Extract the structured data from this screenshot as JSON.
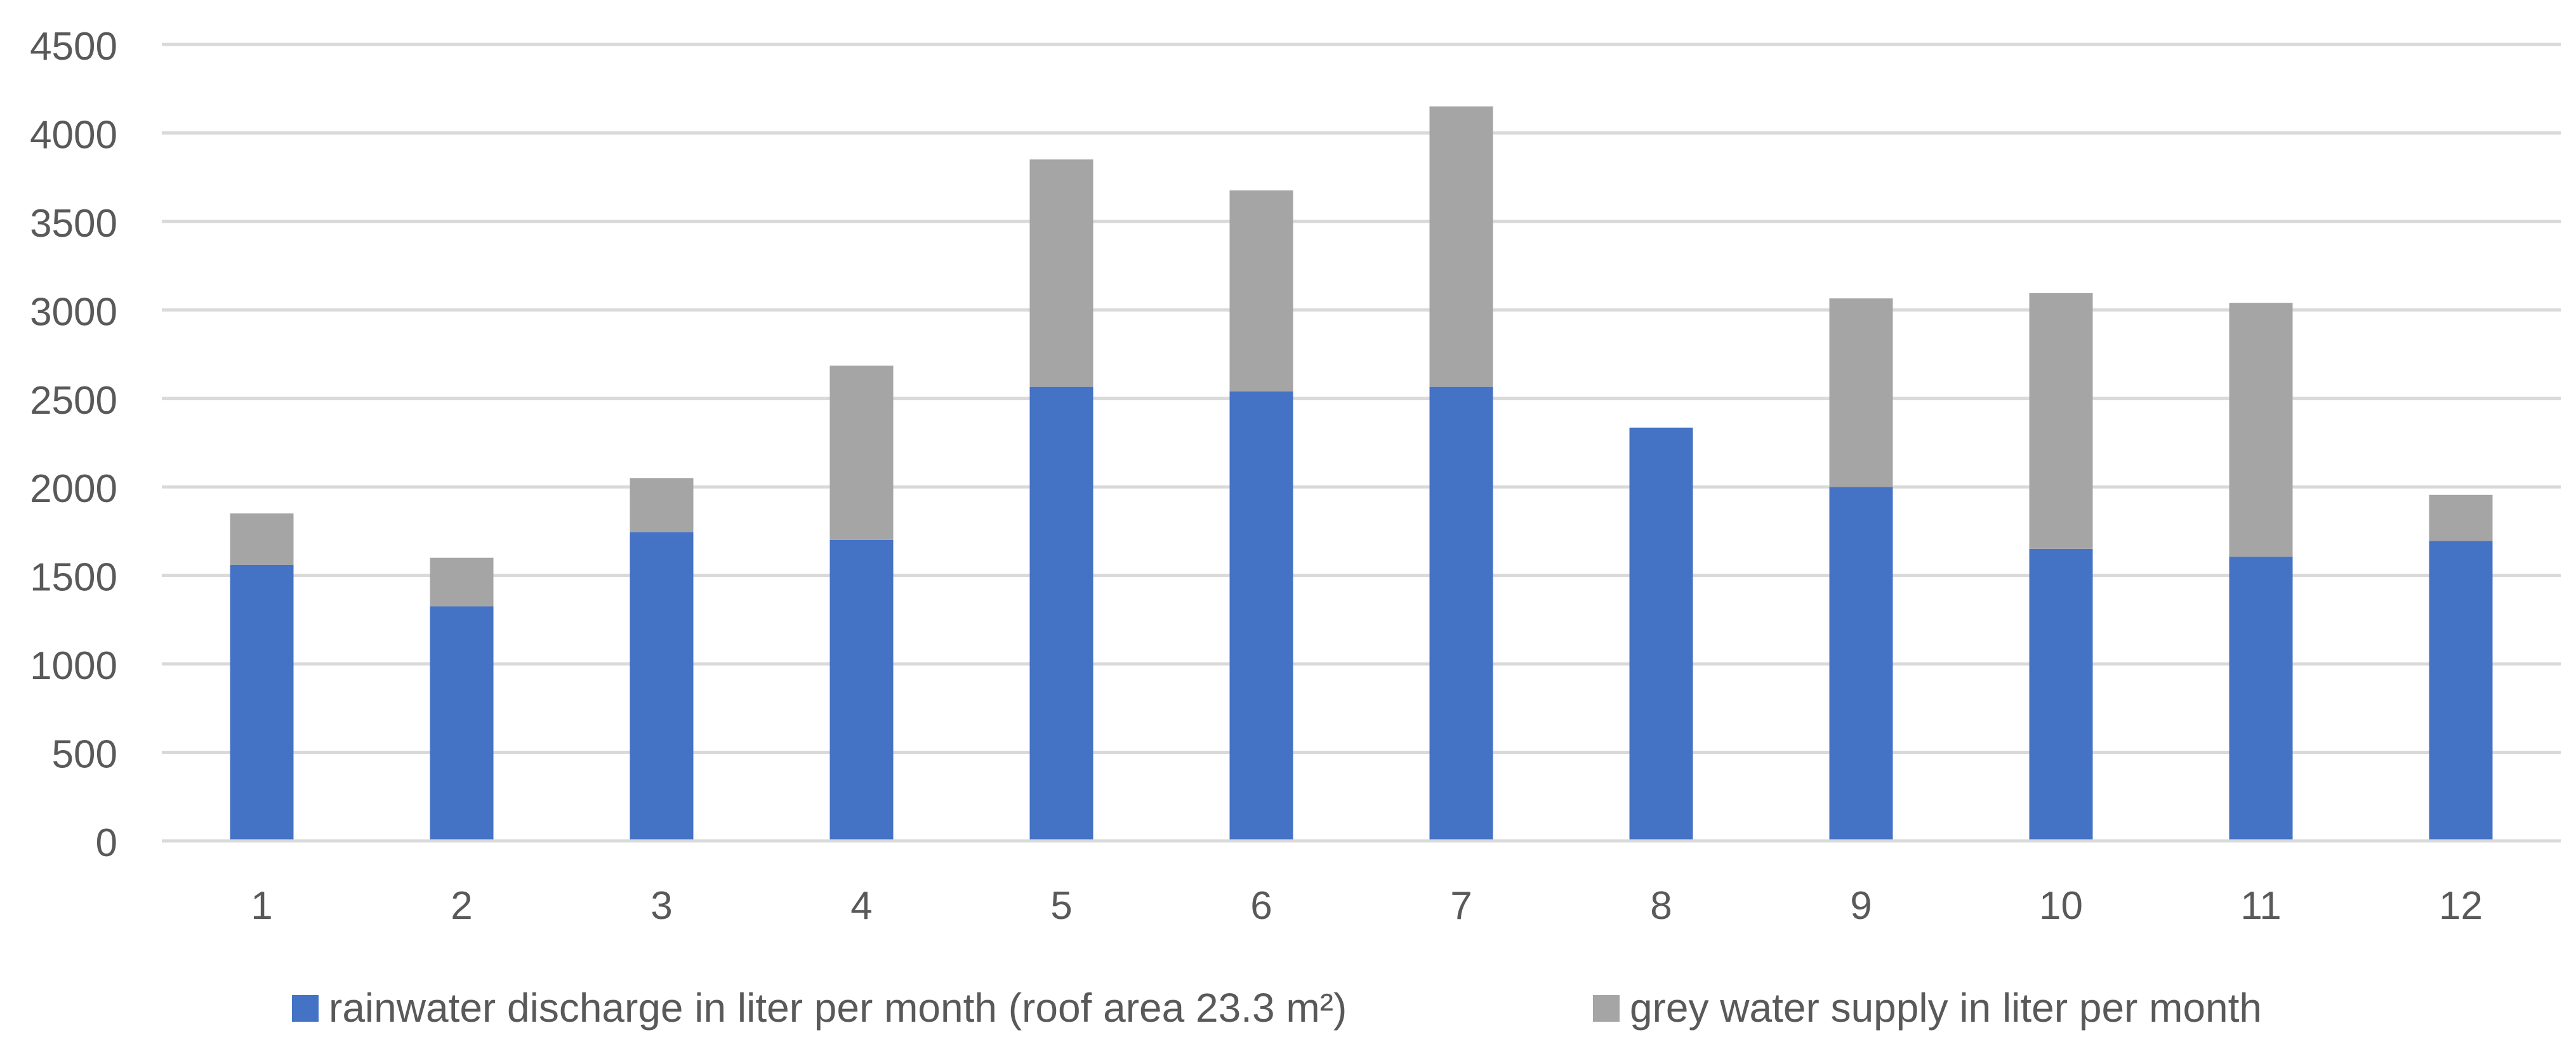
{
  "chart_data": {
    "type": "bar",
    "stacked": true,
    "title": "",
    "xlabel": "",
    "ylabel": "",
    "categories": [
      "1",
      "2",
      "3",
      "4",
      "5",
      "6",
      "7",
      "8",
      "9",
      "10",
      "11",
      "12"
    ],
    "series": [
      {
        "name": "rainwater discharge in liter per month (roof area 23.3 m²)",
        "color": "#4472C4",
        "values": [
          1560,
          1325,
          1745,
          1700,
          2565,
          2540,
          2565,
          2335,
          2000,
          1650,
          1605,
          1695
        ]
      },
      {
        "name": "grey water supply in liter per month",
        "color": "#A5A5A5",
        "values": [
          290,
          275,
          305,
          985,
          1285,
          1135,
          1585,
          0,
          1065,
          1445,
          1435,
          260
        ]
      }
    ],
    "ylim": [
      0,
      4500
    ],
    "yticks": [
      0,
      500,
      1000,
      1500,
      2000,
      2500,
      3000,
      3500,
      4000,
      4500
    ],
    "grid": true,
    "legend_position": "bottom"
  }
}
